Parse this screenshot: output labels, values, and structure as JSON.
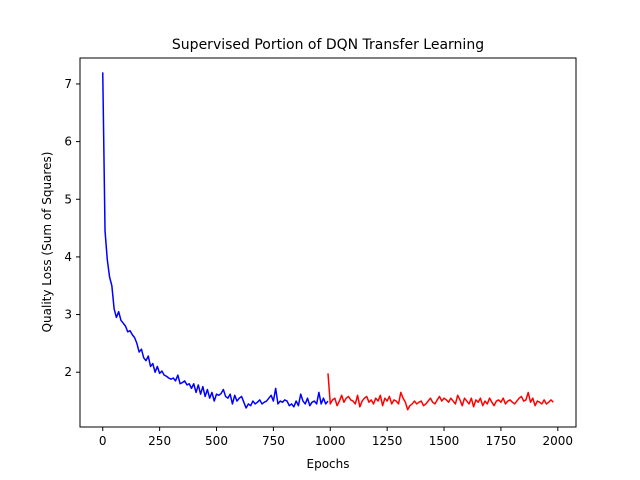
{
  "chart_data": {
    "type": "line",
    "title": "Supervised Portion of DQN Transfer Learning",
    "xlabel": "Epochs",
    "ylabel": "Quality Loss (Sum of Squares)",
    "xlim": [
      -100,
      2080
    ],
    "ylim": [
      1.05,
      7.45
    ],
    "xticks": [
      0,
      250,
      500,
      750,
      1000,
      1250,
      1500,
      1750,
      2000
    ],
    "yticks": [
      2,
      3,
      4,
      5,
      6,
      7
    ],
    "grid": false,
    "series": [
      {
        "color": "#0000ff",
        "x": [
          0,
          10,
          20,
          30,
          40,
          50,
          60,
          70,
          80,
          90,
          100,
          110,
          120,
          130,
          140,
          150,
          160,
          170,
          180,
          190,
          200,
          210,
          220,
          230,
          240,
          250,
          260,
          270,
          280,
          290,
          300,
          310,
          320,
          330,
          340,
          350,
          360,
          370,
          380,
          390,
          400,
          410,
          420,
          430,
          440,
          450,
          460,
          470,
          480,
          490,
          500,
          510,
          520,
          530,
          540,
          550,
          560,
          570,
          580,
          590,
          600,
          610,
          620,
          630,
          640,
          650,
          660,
          670,
          680,
          690,
          700,
          710,
          720,
          730,
          740,
          750,
          760,
          770,
          780,
          790,
          800,
          810,
          820,
          830,
          840,
          850,
          860,
          870,
          880,
          890,
          900,
          910,
          920,
          930,
          940,
          950,
          960,
          970,
          980,
          990
        ],
        "y": [
          7.2,
          4.45,
          3.95,
          3.65,
          3.5,
          3.1,
          2.95,
          3.05,
          2.9,
          2.85,
          2.8,
          2.7,
          2.72,
          2.65,
          2.6,
          2.5,
          2.35,
          2.4,
          2.25,
          2.2,
          2.28,
          2.1,
          2.15,
          2.0,
          2.1,
          1.98,
          2.02,
          1.95,
          1.93,
          1.9,
          1.88,
          1.9,
          1.85,
          1.95,
          1.8,
          1.82,
          1.85,
          1.78,
          1.8,
          1.72,
          1.8,
          1.65,
          1.78,
          1.62,
          1.75,
          1.58,
          1.7,
          1.55,
          1.65,
          1.5,
          1.62,
          1.6,
          1.63,
          1.7,
          1.58,
          1.55,
          1.62,
          1.45,
          1.6,
          1.5,
          1.55,
          1.58,
          1.48,
          1.38,
          1.45,
          1.42,
          1.5,
          1.45,
          1.48,
          1.52,
          1.45,
          1.48,
          1.5,
          1.55,
          1.6,
          1.5,
          1.72,
          1.45,
          1.5,
          1.48,
          1.52,
          1.5,
          1.42,
          1.45,
          1.4,
          1.5,
          1.42,
          1.62,
          1.5,
          1.45,
          1.55,
          1.42,
          1.48,
          1.5,
          1.45,
          1.65,
          1.45,
          1.55,
          1.45,
          1.5
        ]
      },
      {
        "color": "#ff0000",
        "x": [
          990,
          1000,
          1010,
          1020,
          1030,
          1040,
          1050,
          1060,
          1070,
          1080,
          1090,
          1100,
          1110,
          1120,
          1130,
          1140,
          1150,
          1160,
          1170,
          1180,
          1190,
          1200,
          1210,
          1220,
          1230,
          1240,
          1250,
          1260,
          1270,
          1280,
          1290,
          1300,
          1310,
          1320,
          1330,
          1340,
          1350,
          1360,
          1370,
          1380,
          1390,
          1400,
          1410,
          1420,
          1430,
          1440,
          1450,
          1460,
          1470,
          1480,
          1490,
          1500,
          1510,
          1520,
          1530,
          1540,
          1550,
          1560,
          1570,
          1580,
          1590,
          1600,
          1610,
          1620,
          1630,
          1640,
          1650,
          1660,
          1670,
          1680,
          1690,
          1700,
          1710,
          1720,
          1730,
          1740,
          1750,
          1760,
          1770,
          1780,
          1790,
          1800,
          1810,
          1820,
          1830,
          1840,
          1850,
          1860,
          1870,
          1880,
          1890,
          1900,
          1910,
          1920,
          1930,
          1940,
          1950,
          1960,
          1970,
          1980
        ],
        "y": [
          1.98,
          1.45,
          1.52,
          1.55,
          1.42,
          1.5,
          1.6,
          1.48,
          1.55,
          1.58,
          1.52,
          1.5,
          1.45,
          1.6,
          1.4,
          1.5,
          1.55,
          1.58,
          1.48,
          1.52,
          1.45,
          1.55,
          1.5,
          1.6,
          1.42,
          1.55,
          1.5,
          1.58,
          1.45,
          1.52,
          1.5,
          1.45,
          1.65,
          1.55,
          1.48,
          1.35,
          1.42,
          1.45,
          1.5,
          1.45,
          1.48,
          1.5,
          1.42,
          1.45,
          1.5,
          1.55,
          1.48,
          1.45,
          1.52,
          1.58,
          1.5,
          1.55,
          1.52,
          1.48,
          1.55,
          1.5,
          1.45,
          1.6,
          1.52,
          1.42,
          1.55,
          1.5,
          1.45,
          1.55,
          1.4,
          1.52,
          1.48,
          1.55,
          1.42,
          1.5,
          1.45,
          1.55,
          1.48,
          1.42,
          1.5,
          1.52,
          1.48,
          1.55,
          1.45,
          1.5,
          1.52,
          1.48,
          1.45,
          1.5,
          1.55,
          1.58,
          1.5,
          1.52,
          1.65,
          1.48,
          1.55,
          1.42,
          1.5,
          1.48,
          1.45,
          1.52,
          1.45,
          1.48,
          1.52,
          1.48
        ]
      }
    ]
  }
}
